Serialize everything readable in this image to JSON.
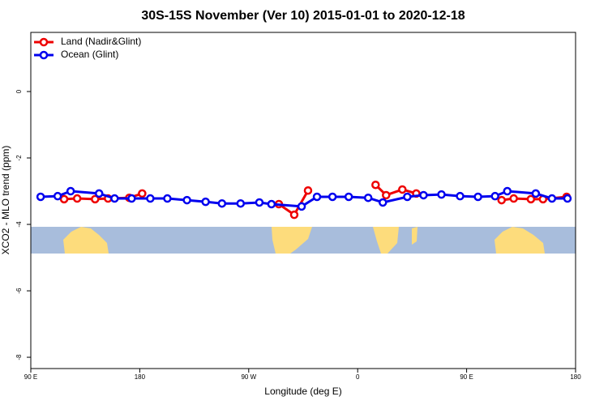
{
  "chart_data": {
    "type": "line",
    "title": "30S-15S November (Ver 10)   2015-01-01 to 2020-12-18",
    "x_label": "Longitude (deg E)",
    "y_label": "XCO2 - MLO trend (ppm)",
    "xlim": [
      90,
      540
    ],
    "xticks": [
      {
        "value": 90,
        "label": "90 E"
      },
      180,
      {
        "value": 270,
        "label": "90 W"
      },
      {
        "value": 360,
        "label": "0"
      },
      {
        "value": 450,
        "label": "90 E"
      },
      {
        "value": 540,
        "label": "180"
      }
    ],
    "ylim": [
      -8.34,
      1.78
    ],
    "yticks": [
      0,
      -2,
      -4,
      -6,
      -8
    ],
    "legend": "top-left",
    "series": [
      {
        "name": "Land (Nadir&Glint)",
        "color": "#ee0000",
        "x": [
          117.5,
          128.3,
          143.1,
          153.8,
          171.3,
          182.0,
          null,
          294.9,
          307.6,
          319.0,
          null,
          374.8,
          383.5,
          396.9,
          408.4,
          null,
          478.9,
          488.9,
          503.1,
          513.1,
          532.6
        ],
        "values": [
          -3.24,
          -3.22,
          -3.24,
          -3.22,
          -3.2,
          -3.07,
          null,
          -3.39,
          -3.71,
          -2.98,
          null,
          -2.81,
          -3.12,
          -2.95,
          -3.07,
          null,
          -3.27,
          -3.22,
          -3.24,
          -3.24,
          -3.17
        ]
      },
      {
        "name": "Ocean (Glint)",
        "color": "#0000ee",
        "x": [
          98.1,
          112.2,
          122.9,
          146.4,
          159.2,
          173.3,
          188.7,
          202.8,
          219.0,
          234.4,
          247.9,
          263.3,
          278.8,
          288.8,
          313.7,
          326.4,
          339.2,
          352.6,
          368.7,
          380.8,
          401.0,
          414.4,
          429.2,
          444.6,
          459.4,
          473.5,
          483.6,
          507.1,
          520.5,
          533.3
        ],
        "values": [
          -3.17,
          -3.15,
          -3.0,
          -3.07,
          -3.22,
          -3.22,
          -3.22,
          -3.22,
          -3.27,
          -3.32,
          -3.37,
          -3.37,
          -3.34,
          -3.39,
          -3.46,
          -3.17,
          -3.17,
          -3.17,
          -3.2,
          -3.34,
          -3.17,
          -3.12,
          -3.1,
          -3.15,
          -3.17,
          -3.15,
          -3.0,
          -3.07,
          -3.22,
          -3.22
        ]
      }
    ]
  }
}
